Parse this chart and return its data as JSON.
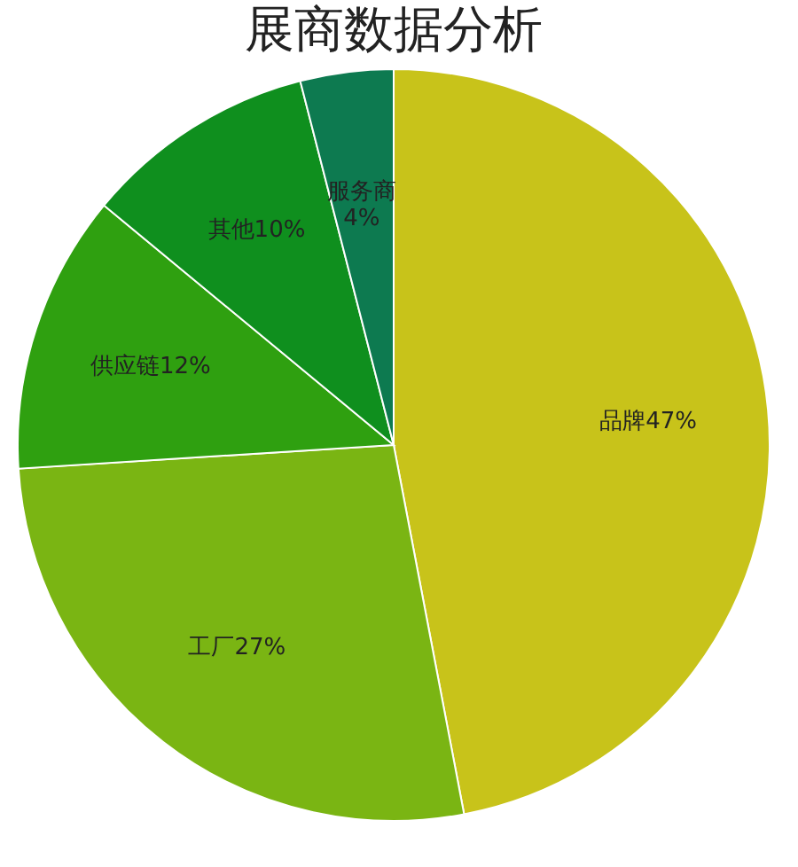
{
  "chart_data": {
    "type": "pie",
    "title": "展商数据分析",
    "categories": [
      "品牌",
      "工厂",
      "供应链",
      "其他",
      "服务商"
    ],
    "values": [
      47,
      27,
      12,
      10,
      4
    ],
    "value_labels": [
      "47%",
      "27%",
      "12%",
      "10%",
      "4%"
    ],
    "colors": [
      "#c8c31a",
      "#7ab513",
      "#2fa010",
      "#0f8f1e",
      "#0d7a50"
    ],
    "legend": false
  }
}
